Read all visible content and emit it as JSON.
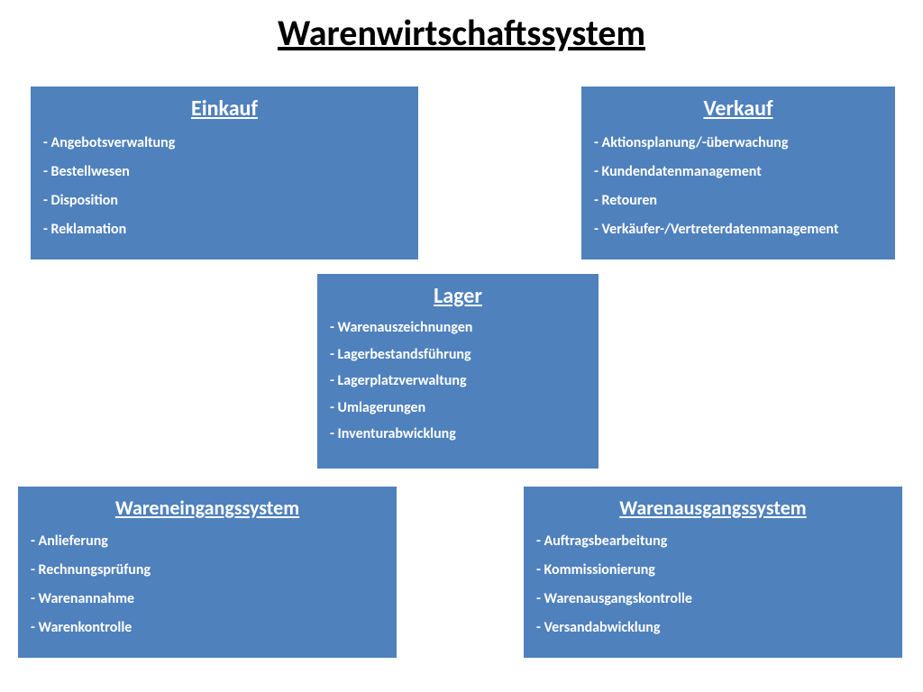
{
  "title": "Warenwirtschaftssystem",
  "colors": {
    "box_bg": "#4f81bd",
    "box_text": "#ffffff",
    "page_bg": "#ffffff",
    "title_text": "#000000"
  },
  "boxes": {
    "einkauf": {
      "title": "Einkauf",
      "items": [
        "- Angebotsverwaltung",
        "- Bestellwesen",
        "- Disposition",
        "- Reklamation"
      ]
    },
    "verkauf": {
      "title": "Verkauf",
      "items": [
        "- Aktionsplanung/-überwachung",
        "- Kundendatenmanagement",
        "- Retouren",
        "- Verkäufer-/Vertreterdatenmanagement"
      ]
    },
    "lager": {
      "title": "Lager",
      "items": [
        "- Warenauszeichnungen",
        "- Lagerbestandsführung",
        "- Lagerplatzverwaltung",
        "- Umlagerungen",
        "- Inventurabwicklung"
      ]
    },
    "wareneingang": {
      "title": "Wareneingangssystem",
      "items": [
        "- Anlieferung",
        "- Rechnungsprüfung",
        "- Warenannahme",
        "- Warenkontrolle"
      ]
    },
    "warenausgang": {
      "title": "Warenausgangssystem",
      "items": [
        "- Auftragsbearbeitung",
        "- Kommissionierung",
        "- Warenausgangskontrolle",
        "- Versandabwicklung"
      ]
    }
  }
}
